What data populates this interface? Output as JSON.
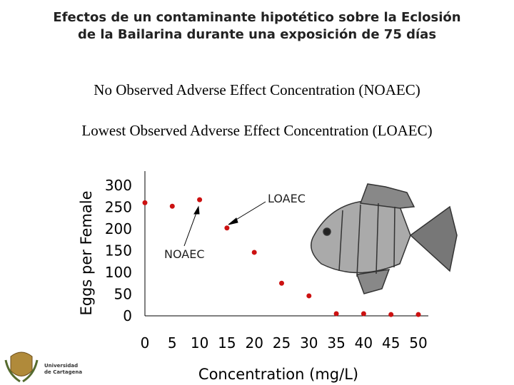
{
  "header": {
    "title": [
      "Efectos de un contaminante hipotético sobre la Eclosión",
      "de la Bailarina durante una exposición de 75 días"
    ],
    "noaec": "No Observed Adverse Effect Concentration (NOAEC)",
    "loaec": "Lowest Observed Adverse Effect Concentration (LOAEC)"
  },
  "logo": {
    "text": [
      "Universidad",
      "de Cartagena"
    ]
  },
  "chart_data": {
    "type": "scatter",
    "xlabel": "Concentration (mg/L)",
    "ylabel": "Eggs per Female",
    "x": [
      0,
      5,
      10,
      15,
      20,
      25,
      30,
      35,
      40,
      45,
      50
    ],
    "values": [
      260,
      252,
      267,
      202,
      146,
      75,
      46,
      5,
      5,
      3,
      3
    ],
    "color": "#cc1111",
    "xlim": [
      0,
      50
    ],
    "ylim": [
      0,
      300
    ],
    "xticks": [
      0,
      5,
      10,
      15,
      20,
      25,
      30,
      35,
      40,
      45,
      50
    ],
    "yticks": [
      0,
      50,
      100,
      150,
      200,
      250,
      300
    ],
    "annotations": [
      "NOAEC",
      "LOAEC"
    ]
  }
}
